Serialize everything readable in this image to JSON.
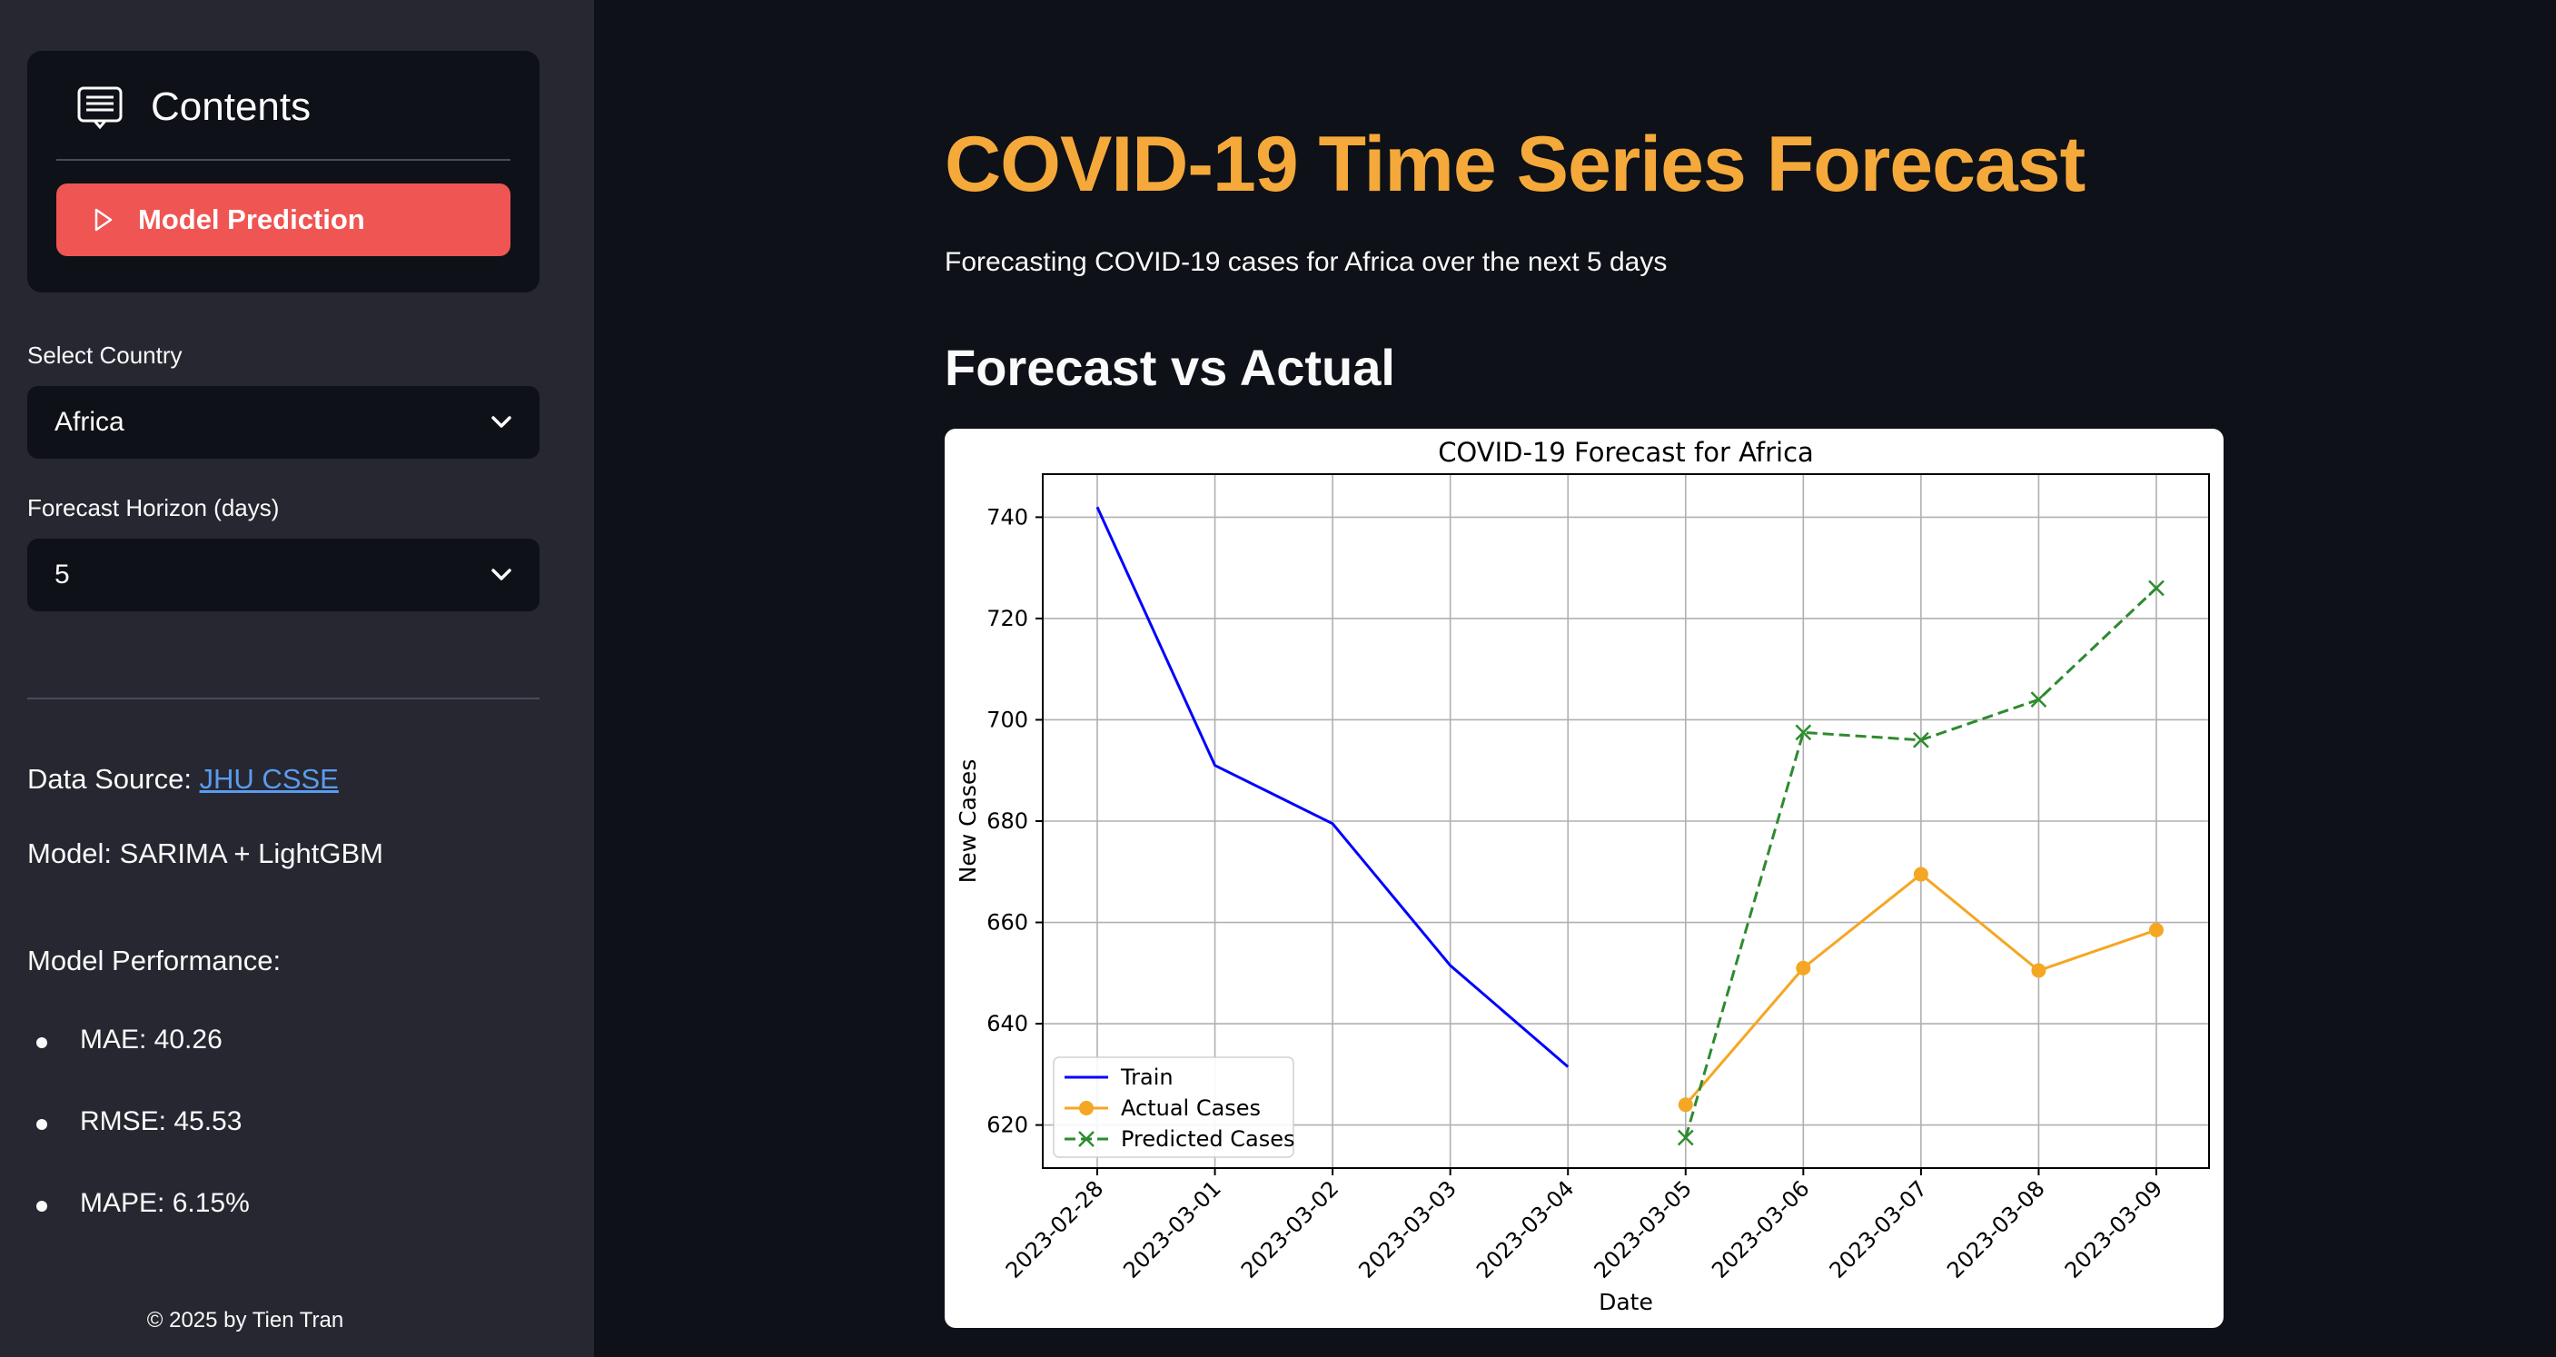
{
  "sidebar": {
    "contents_title": "Contents",
    "nav_button": "Model Prediction",
    "country_label": "Select Country",
    "country_value": "Africa",
    "horizon_label": "Forecast Horizon (days)",
    "horizon_value": "5",
    "data_source_prefix": "Data Source: ",
    "data_source_link": "JHU CSSE",
    "model_text": "Model: SARIMA + LightGBM",
    "performance_title": "Model Performance:",
    "metrics": [
      "MAE: 40.26",
      "RMSE: 45.53",
      "MAPE: 6.15%"
    ],
    "footer": "© 2025 by Tien Tran"
  },
  "main": {
    "title": "COVID-19 Time Series Forecast",
    "subtitle": "Forecasting COVID-19 cases for Africa over the next 5 days",
    "section_title": "Forecast vs Actual"
  },
  "colors": {
    "accent": "#f5a93a",
    "nav_button": "#ef5552",
    "link": "#5a9cf0",
    "train": "#0000ff",
    "actual": "#f5a623",
    "predicted": "#2e8b2e"
  },
  "chart_data": {
    "type": "line",
    "title": "COVID-19 Forecast for Africa",
    "xlabel": "Date",
    "ylabel": "New Cases",
    "categories": [
      "2023-02-28",
      "2023-03-01",
      "2023-03-02",
      "2023-03-03",
      "2023-03-04",
      "2023-03-05",
      "2023-03-06",
      "2023-03-07",
      "2023-03-08",
      "2023-03-09"
    ],
    "ylim": [
      611.5,
      748.5
    ],
    "yticks": [
      620,
      640,
      660,
      680,
      700,
      720,
      740
    ],
    "grid": true,
    "legend_position": "lower-left",
    "series": [
      {
        "name": "Train",
        "style": "solid",
        "marker": "none",
        "color": "#0000ff",
        "points": [
          [
            "2023-02-28",
            742
          ],
          [
            "2023-03-01",
            691
          ],
          [
            "2023-03-02",
            679.5
          ],
          [
            "2023-03-03",
            651.5
          ],
          [
            "2023-03-04",
            631.5
          ]
        ]
      },
      {
        "name": "Actual Cases",
        "style": "solid",
        "marker": "circle",
        "color": "#f5a623",
        "points": [
          [
            "2023-03-05",
            624
          ],
          [
            "2023-03-06",
            651
          ],
          [
            "2023-03-07",
            669.5
          ],
          [
            "2023-03-08",
            650.5
          ],
          [
            "2023-03-09",
            658.5
          ]
        ]
      },
      {
        "name": "Predicted Cases",
        "style": "dashed",
        "marker": "x",
        "color": "#2e8b2e",
        "points": [
          [
            "2023-03-05",
            617.5
          ],
          [
            "2023-03-06",
            697.5
          ],
          [
            "2023-03-07",
            696
          ],
          [
            "2023-03-08",
            704
          ],
          [
            "2023-03-09",
            726
          ]
        ]
      }
    ]
  }
}
